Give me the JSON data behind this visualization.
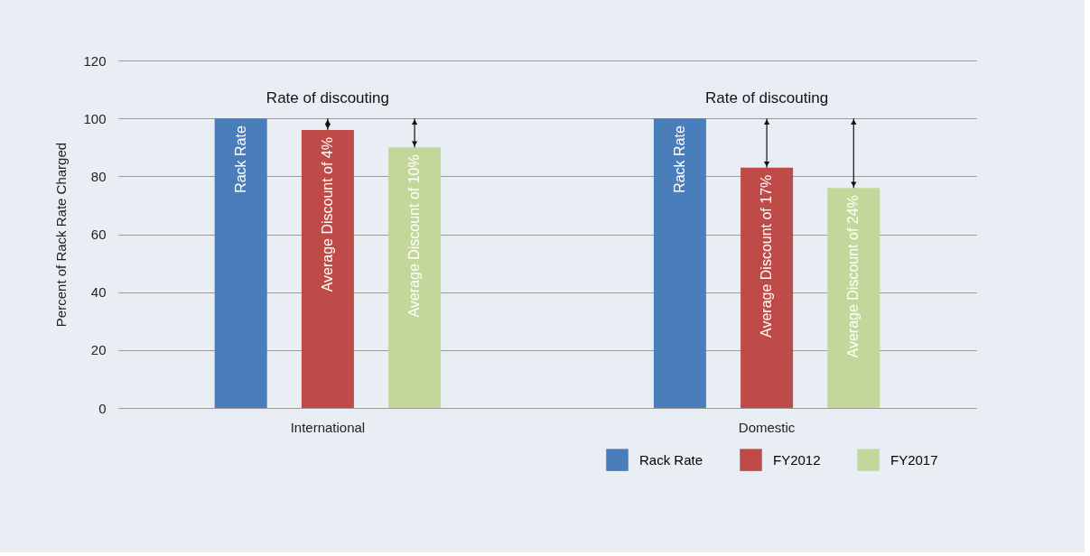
{
  "chart_data": {
    "type": "bar",
    "ylabel": "Percent of Rack Rate Charged",
    "categories": [
      "International",
      "Domestic"
    ],
    "series": [
      {
        "name": "Rack Rate",
        "color": "#4a7ebb",
        "values": [
          100,
          100
        ]
      },
      {
        "name": "FY2012",
        "color": "#be4b48",
        "values": [
          96,
          83
        ]
      },
      {
        "name": "FY2017",
        "color": "#c4d79b",
        "values": [
          90,
          76
        ]
      }
    ],
    "ylim": [
      0,
      120
    ],
    "yticks": [
      0,
      20,
      40,
      60,
      80,
      100,
      120
    ],
    "grid": "y",
    "legend": "bottom right",
    "annotations": [
      "Rate of discouting",
      "Rate of discouting",
      "Rack Rate",
      "Average Discount of 4%",
      "Average Discount of 10%",
      "Rack Rate",
      "Average Discount of 17%",
      "Average Discount of 24%"
    ]
  }
}
